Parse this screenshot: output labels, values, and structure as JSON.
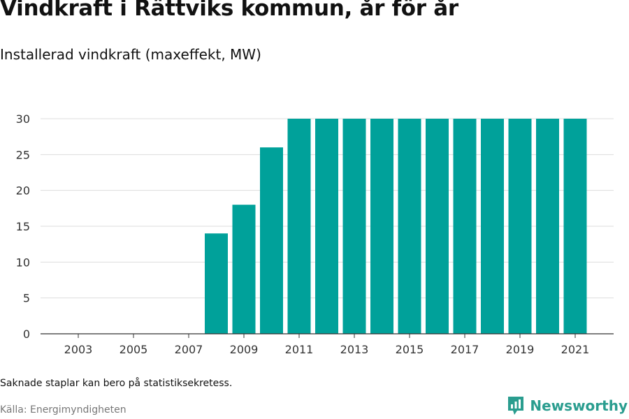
{
  "header": {
    "title": "Vindkraft i Rättviks kommun, år för år",
    "subtitle": "Installerad vindkraft (maxeffekt, MW)"
  },
  "footer": {
    "note": "Saknade staplar kan bero på statistiksekretess.",
    "source": "Källa: Energimyndigheten",
    "brand": "Newsworthy"
  },
  "colors": {
    "bar": "#00a19a",
    "grid": "#dddddd",
    "axis": "#333333",
    "brand": "#2a9d8f"
  },
  "chart_data": {
    "type": "bar",
    "title": "Vindkraft i Rättviks kommun, år för år",
    "subtitle": "Installerad vindkraft (maxeffekt, MW)",
    "xlabel": "",
    "ylabel": "",
    "categories": [
      "2003",
      "2004",
      "2005",
      "2006",
      "2007",
      "2008",
      "2009",
      "2010",
      "2011",
      "2012",
      "2013",
      "2014",
      "2015",
      "2016",
      "2017",
      "2018",
      "2019",
      "2020",
      "2021"
    ],
    "values": [
      0,
      0,
      0,
      0,
      0,
      14,
      18,
      26,
      30,
      30,
      30,
      30,
      30,
      30,
      30,
      30,
      30,
      30,
      30
    ],
    "x_tick_labels": [
      "2003",
      "2005",
      "2007",
      "2009",
      "2011",
      "2013",
      "2015",
      "2017",
      "2019",
      "2021"
    ],
    "y_ticks": [
      0,
      5,
      10,
      15,
      20,
      25,
      30
    ],
    "ylim": [
      0,
      30
    ],
    "grid": true
  }
}
